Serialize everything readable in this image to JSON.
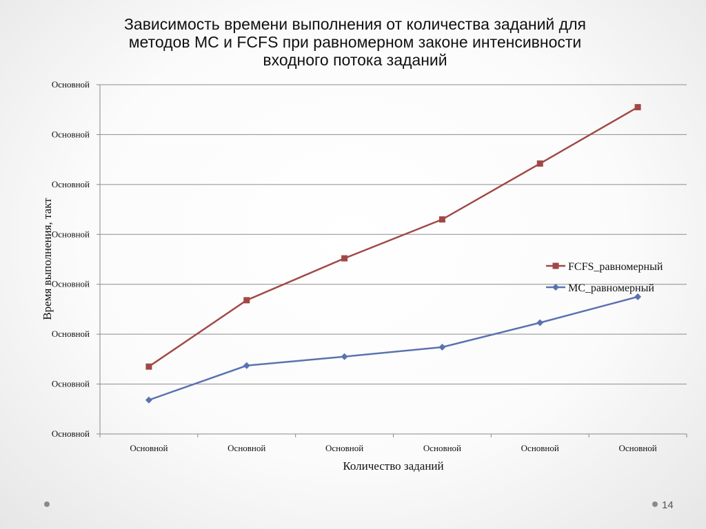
{
  "slide": {
    "title_lines": [
      "Зависимость  времени выполнения от количества заданий для",
      "методов МС и FCFS при равномерном законе интенсивности",
      "входного потока заданий"
    ],
    "page_number": "14"
  },
  "chart_data": {
    "type": "line",
    "title": "",
    "xlabel": "Количество заданий",
    "ylabel": "Время выполнения, такт",
    "categories": [
      "Основной",
      "Основной",
      "Основной",
      "Основной",
      "Основной",
      "Основной"
    ],
    "y_tick_labels": [
      "Основной",
      "Основной",
      "Основной",
      "Основной",
      "Основной",
      "Основной",
      "Основной",
      "Основной"
    ],
    "ylim": [
      0,
      7
    ],
    "grid": true,
    "legend_position": "right",
    "series": [
      {
        "name": "FCFS_равномерный",
        "color": "#a04846",
        "marker": "square",
        "values": [
          1.35,
          2.68,
          3.52,
          4.3,
          5.42,
          6.55
        ]
      },
      {
        "name": "МС_равномерный",
        "color": "#5a72b0",
        "marker": "diamond",
        "values": [
          0.68,
          1.37,
          1.55,
          1.74,
          2.23,
          2.75
        ]
      }
    ]
  }
}
